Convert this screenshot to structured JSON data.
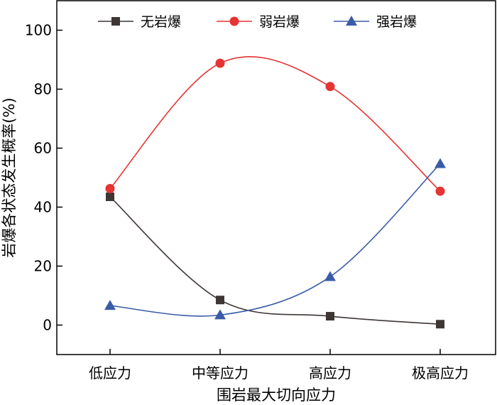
{
  "chart_data": {
    "type": "line",
    "title": "",
    "xlabel": "围岩最大切向应力",
    "ylabel": "岩爆各状态发生概率(%)",
    "categories": [
      "低应力",
      "中等应力",
      "高应力",
      "极高应力"
    ],
    "ylim": [
      -10,
      110
    ],
    "yticks": [
      0,
      20,
      40,
      60,
      80,
      100
    ],
    "grid": false,
    "legend_position": "top",
    "smooth": true,
    "series": [
      {
        "name": "无岩爆",
        "values": [
          43.5,
          8.5,
          3.0,
          0.3
        ],
        "color": "#3d3634",
        "marker": "square"
      },
      {
        "name": "弱岩爆",
        "values": [
          46.3,
          88.8,
          80.9,
          45.4
        ],
        "color": "#e53433",
        "marker": "circle"
      },
      {
        "name": "强岩爆",
        "values": [
          6.6,
          3.4,
          16.4,
          54.7
        ],
        "color": "#3a5ca8",
        "marker": "triangle"
      }
    ]
  }
}
